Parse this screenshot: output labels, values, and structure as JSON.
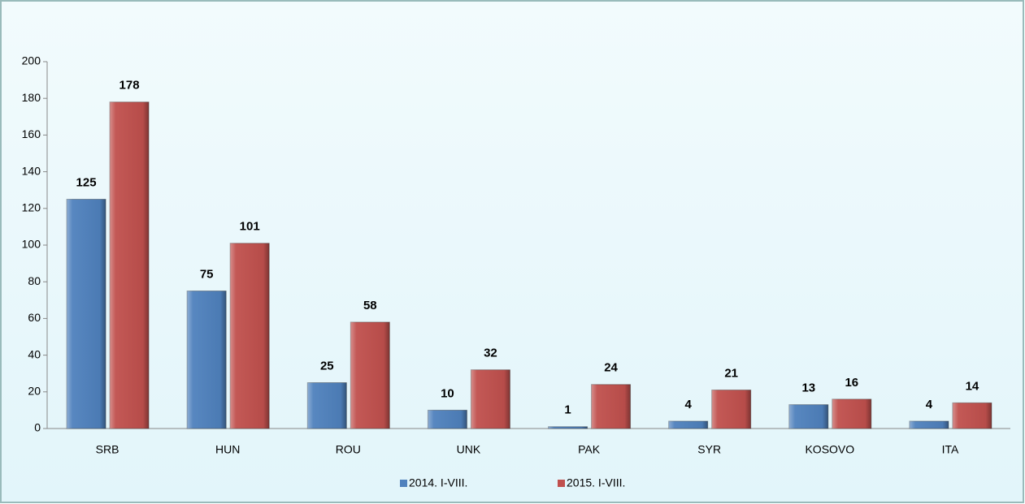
{
  "chart_data": {
    "type": "bar",
    "categories": [
      "SRB",
      "HUN",
      "ROU",
      "UNK",
      "PAK",
      "SYR",
      "KOSOVO",
      "ITA"
    ],
    "series": [
      {
        "name": "2014. I-VIII.",
        "color": "#4f81bd",
        "values": [
          125,
          75,
          25,
          10,
          1,
          4,
          13,
          4
        ]
      },
      {
        "name": "2015. I-VIII.",
        "color": "#c0504d",
        "values": [
          178,
          101,
          58,
          32,
          24,
          21,
          16,
          14
        ]
      }
    ],
    "ylim": [
      0,
      200
    ],
    "yticks": [
      0,
      20,
      40,
      60,
      80,
      100,
      120,
      140,
      160,
      180,
      200
    ],
    "grid": false
  }
}
